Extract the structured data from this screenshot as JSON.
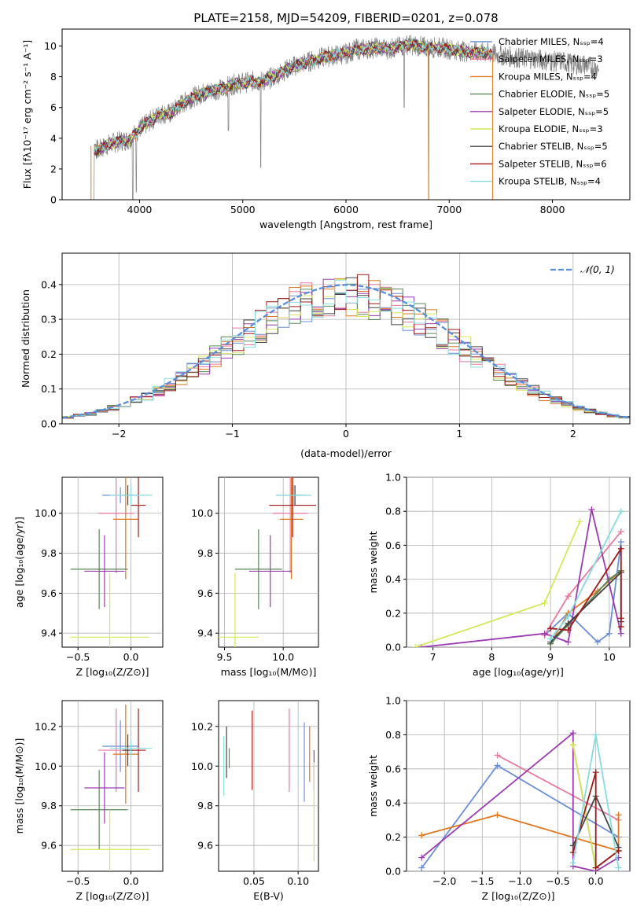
{
  "figure_title": "PLATE=2158, MJD=54209, FIBERID=0201, z=0.078",
  "colors": {
    "Chabrier MILES": "#6b8fd6",
    "Salpeter MILES": "#e8799f",
    "Kroupa MILES": "#e0771f",
    "Chabrier ELODIE": "#5a8a5a",
    "Salpeter ELODIE": "#9c3bb0",
    "Kroupa ELODIE": "#d4e85a",
    "Chabrier STELIB": "#444444",
    "Salpeter STELIB": "#a01818",
    "Kroupa STELIB": "#86dde0",
    "data": "#808080",
    "normal": "#5b8dd9"
  },
  "chart_data": [
    {
      "id": "spectrum",
      "type": "line",
      "title": "PLATE=2158, MJD=54209, FIBERID=0201, z=0.078",
      "xlabel": "wavelength [Angstrom, rest frame]",
      "ylabel": "Flux [fλ10⁻¹⁷ erg cm⁻² s⁻¹ A⁻¹]",
      "xlim": [
        3250,
        8750
      ],
      "ylim": [
        0,
        11.1
      ],
      "xticks": [
        "4000",
        "5000",
        "6000",
        "7000",
        "8000"
      ],
      "yticks": [
        "0",
        "2",
        "4",
        "6",
        "8",
        "10"
      ],
      "legend": [
        {
          "label": "Chabrier MILES, Nₛₛₚ=4"
        },
        {
          "label": "Salpeter MILES, Nₛₛₚ=3"
        },
        {
          "label": "Kroupa MILES, Nₛₛₚ=4"
        },
        {
          "label": "Chabrier ELODIE, Nₛₛₚ=5"
        },
        {
          "label": "Salpeter ELODIE, Nₛₛₚ=5"
        },
        {
          "label": "Kroupa ELODIE, Nₛₛₚ=3"
        },
        {
          "label": "Chabrier STELIB, Nₛₛₚ=5"
        },
        {
          "label": "Salpeter STELIB, Nₛₛₚ=6"
        },
        {
          "label": "Kroupa STELIB, Nₛₛₚ=4"
        }
      ],
      "continuum": [
        [
          3550,
          3.4
        ],
        [
          3600,
          3.2
        ],
        [
          3700,
          3.6
        ],
        [
          3800,
          3.8
        ],
        [
          3900,
          3.9
        ],
        [
          4000,
          4.6
        ],
        [
          4100,
          5.1
        ],
        [
          4200,
          5.6
        ],
        [
          4300,
          5.6
        ],
        [
          4400,
          6.2
        ],
        [
          4500,
          6.6
        ],
        [
          4600,
          6.9
        ],
        [
          4700,
          7.1
        ],
        [
          4800,
          7.2
        ],
        [
          4900,
          7.5
        ],
        [
          5000,
          7.6
        ],
        [
          5100,
          7.7
        ],
        [
          5200,
          7.7
        ],
        [
          5300,
          8.0
        ],
        [
          5400,
          8.4
        ],
        [
          5500,
          8.7
        ],
        [
          5600,
          8.9
        ],
        [
          5700,
          9.1
        ],
        [
          5800,
          9.3
        ],
        [
          5900,
          9.4
        ],
        [
          6000,
          9.5
        ],
        [
          6100,
          9.8
        ],
        [
          6200,
          9.8
        ],
        [
          6300,
          9.9
        ],
        [
          6400,
          9.8
        ],
        [
          6500,
          9.9
        ],
        [
          6600,
          10.1
        ],
        [
          6700,
          10.0
        ],
        [
          6800,
          9.9
        ],
        [
          6900,
          9.9
        ],
        [
          7000,
          9.8
        ],
        [
          7100,
          9.7
        ],
        [
          7200,
          9.6
        ],
        [
          7300,
          9.6
        ],
        [
          7400,
          9.5
        ],
        [
          7500,
          9.4
        ],
        [
          7600,
          9.3
        ],
        [
          7700,
          9.2
        ],
        [
          7800,
          9.2
        ],
        [
          7900,
          9.1
        ],
        [
          8000,
          9.0
        ],
        [
          8100,
          9.0
        ],
        [
          8200,
          8.8
        ],
        [
          8300,
          8.8
        ],
        [
          8400,
          8.6
        ]
      ],
      "model_end": 7420,
      "data_end": 8450,
      "absorption": [
        [
          3934,
          0.0
        ],
        [
          3969,
          0.5
        ],
        [
          4861,
          4.5
        ],
        [
          5175,
          2.1
        ],
        [
          6563,
          6.0
        ],
        [
          6800,
          0.0
        ]
      ]
    },
    {
      "id": "residuals",
      "type": "histogram",
      "xlabel": "(data-model)/error",
      "ylabel": "Normed distribution",
      "xlim": [
        -2.5,
        2.5
      ],
      "ylim": [
        0,
        0.49
      ],
      "xticks": [
        "−2",
        "−1",
        "0",
        "1",
        "2"
      ],
      "yticks": [
        "0.0",
        "0.1",
        "0.2",
        "0.3",
        "0.4"
      ],
      "bin_width": 0.1,
      "legend": [
        {
          "label": "𝒩(0, 1)"
        }
      ],
      "series": [
        {
          "lib": "Chabrier MILES",
          "offset": 0
        },
        {
          "lib": "Salpeter MILES",
          "offset": 1
        },
        {
          "lib": "Kroupa MILES",
          "offset": 2
        },
        {
          "lib": "Chabrier ELODIE",
          "offset": 3
        },
        {
          "lib": "Salpeter ELODIE",
          "offset": 4
        },
        {
          "lib": "Kroupa ELODIE",
          "offset": 5
        },
        {
          "lib": "Chabrier STELIB",
          "offset": 6
        },
        {
          "lib": "Salpeter STELIB",
          "offset": 7
        },
        {
          "lib": "Kroupa STELIB",
          "offset": 8
        }
      ]
    },
    {
      "id": "z-age",
      "type": "scatter",
      "xlabel": "Z [log₁₀(Z/Z⊙)]",
      "ylabel": "age  [log₁₀(age/yr)]",
      "xlim": [
        -0.65,
        0.3
      ],
      "ylim": [
        9.33,
        10.18
      ],
      "xticks": [
        {
          "v": -0.5,
          "t": "−0.5"
        },
        {
          "v": 0.0,
          "t": "0.0"
        }
      ],
      "yticks": [
        {
          "v": 9.4,
          "t": "9.4"
        },
        {
          "v": 9.6,
          "t": "9.6"
        },
        {
          "v": 9.8,
          "t": "9.8"
        },
        {
          "v": 10.0,
          "t": "10.0"
        }
      ],
      "points": [
        {
          "lib": "Chabrier MILES",
          "x": -0.1,
          "xe": 0.17,
          "y": 10.09,
          "ye": 0.04
        },
        {
          "lib": "Salpeter MILES",
          "x": -0.14,
          "xe": 0.17,
          "y": 10.0,
          "ye": 0.3
        },
        {
          "lib": "Kroupa MILES",
          "x": -0.05,
          "xe": 0.12,
          "y": 9.97,
          "ye": 0.3
        },
        {
          "lib": "Chabrier ELODIE",
          "x": -0.3,
          "xe": 0.27,
          "y": 9.72,
          "ye": 0.2
        },
        {
          "lib": "Salpeter ELODIE",
          "x": -0.25,
          "xe": 0.19,
          "y": 9.71,
          "ye": 0.18
        },
        {
          "lib": "Kroupa ELODIE",
          "x": -0.2,
          "xe": 0.37,
          "y": 9.38,
          "ye": 0.32
        },
        {
          "lib": "Chabrier STELIB",
          "x": -0.03,
          "xe": 0.05,
          "y": 10.09,
          "ye": 0.05
        },
        {
          "lib": "Salpeter STELIB",
          "x": 0.07,
          "xe": 0.07,
          "y": 10.04,
          "ye": 0.16
        },
        {
          "lib": "Kroupa STELIB",
          "x": 0.0,
          "xe": 0.2,
          "y": 10.09,
          "ye": 0.05
        }
      ]
    },
    {
      "id": "mass-age",
      "type": "scatter",
      "xlabel": "mass [log₁₀(M/M⊙)]",
      "ylabel": "",
      "xlim": [
        9.45,
        10.3
      ],
      "ylim": [
        9.33,
        10.18
      ],
      "xticks": [
        {
          "v": 9.5,
          "t": "9.5"
        },
        {
          "v": 10.0,
          "t": "10.0"
        }
      ],
      "yticks": [
        {
          "v": 9.4,
          "t": "9.4"
        },
        {
          "v": 9.6,
          "t": "9.6"
        },
        {
          "v": 9.8,
          "t": "9.8"
        },
        {
          "v": 10.0,
          "t": "10.0"
        }
      ],
      "points": [
        {
          "lib": "Chabrier MILES",
          "x": 10.07,
          "xe": 0.13,
          "y": 10.09,
          "ye": 0.04
        },
        {
          "lib": "Salpeter MILES",
          "x": 10.06,
          "xe": 0.15,
          "y": 10.0,
          "ye": 0.3
        },
        {
          "lib": "Kroupa MILES",
          "x": 10.07,
          "xe": 0.1,
          "y": 9.97,
          "ye": 0.3
        },
        {
          "lib": "Chabrier ELODIE",
          "x": 9.79,
          "xe": 0.2,
          "y": 9.72,
          "ye": 0.2
        },
        {
          "lib": "Salpeter ELODIE",
          "x": 9.89,
          "xe": 0.18,
          "y": 9.71,
          "ye": 0.18
        },
        {
          "lib": "Kroupa ELODIE",
          "x": 9.59,
          "xe": 0.2,
          "y": 9.38,
          "ye": 0.32
        },
        {
          "lib": "Chabrier STELIB",
          "x": 10.1,
          "xe": 0.05,
          "y": 10.09,
          "ye": 0.05
        },
        {
          "lib": "Salpeter STELIB",
          "x": 10.08,
          "xe": 0.2,
          "y": 10.04,
          "ye": 0.16
        },
        {
          "lib": "Kroupa STELIB",
          "x": 10.09,
          "xe": 0.15,
          "y": 10.09,
          "ye": 0.05
        }
      ]
    },
    {
      "id": "age-weight",
      "type": "line",
      "xlabel": "age  [log₁₀(age/yr)]",
      "ylabel": "mass weight",
      "xlim": [
        6.55,
        10.35
      ],
      "ylim": [
        0,
        1.0
      ],
      "xticks": [
        {
          "v": 7,
          "t": "7"
        },
        {
          "v": 8,
          "t": "8"
        },
        {
          "v": 9,
          "t": "9"
        },
        {
          "v": 10,
          "t": "10"
        }
      ],
      "yticks": [
        {
          "v": 0,
          "t": "0.0"
        },
        {
          "v": 0.2,
          "t": "0.2"
        },
        {
          "v": 0.4,
          "t": "0.4"
        },
        {
          "v": 0.6,
          "t": "0.6"
        },
        {
          "v": 0.8,
          "t": "0.8"
        },
        {
          "v": 1.0,
          "t": "1.0"
        }
      ],
      "series": [
        {
          "lib": "Chabrier MILES",
          "x": [
            8.9,
            9.3,
            9.8,
            10.0,
            10.2
          ],
          "y": [
            0.07,
            0.2,
            0.03,
            0.08,
            0.62
          ]
        },
        {
          "lib": "Salpeter MILES",
          "x": [
            8.9,
            9.3,
            10.2
          ],
          "y": [
            0.07,
            0.3,
            0.68
          ]
        },
        {
          "lib": "Kroupa MILES",
          "x": [
            9.0,
            9.3,
            9.8,
            10.2
          ],
          "y": [
            0.02,
            0.2,
            0.33,
            0.45
          ]
        },
        {
          "lib": "Chabrier ELODIE",
          "x": [
            9.0,
            9.3,
            10.0,
            10.2
          ],
          "y": [
            0.02,
            0.13,
            0.4,
            0.45
          ]
        },
        {
          "lib": "Salpeter ELODIE",
          "x": [
            6.8,
            8.9,
            9.3,
            9.7,
            10.2
          ],
          "y": [
            0.0,
            0.08,
            0.03,
            0.81,
            0.08
          ]
        },
        {
          "lib": "Kroupa ELODIE",
          "x": [
            6.7,
            8.9,
            9.5
          ],
          "y": [
            0.0,
            0.26,
            0.74
          ]
        },
        {
          "lib": "Chabrier STELIB",
          "x": [
            9.0,
            9.3,
            10.2,
            10.2
          ],
          "y": [
            0.03,
            0.14,
            0.44,
            0.15
          ]
        },
        {
          "lib": "Salpeter STELIB",
          "x": [
            9.0,
            9.3,
            10.2,
            10.2,
            10.2
          ],
          "y": [
            0.11,
            0.1,
            0.58,
            0.12,
            0.17
          ]
        },
        {
          "lib": "Kroupa STELIB",
          "x": [
            9.0,
            9.3,
            10.2
          ],
          "y": [
            0.05,
            0.18,
            0.8
          ]
        }
      ]
    },
    {
      "id": "z-mass",
      "type": "scatter",
      "xlabel": "Z [log₁₀(Z/Z⊙)]",
      "ylabel": "mass [log₁₀(M/M⊙)]",
      "xlim": [
        -0.65,
        0.3
      ],
      "ylim": [
        9.47,
        10.33
      ],
      "xticks": [
        {
          "v": -0.5,
          "t": "−0.5"
        },
        {
          "v": 0.0,
          "t": "0.0"
        }
      ],
      "yticks": [
        {
          "v": 9.6,
          "t": "9.6"
        },
        {
          "v": 9.8,
          "t": "9.8"
        },
        {
          "v": 10.0,
          "t": "10.0"
        },
        {
          "v": 10.2,
          "t": "10.2"
        }
      ],
      "points": [
        {
          "lib": "Chabrier MILES",
          "x": -0.1,
          "xe": 0.17,
          "y": 10.1,
          "ye": 0.13
        },
        {
          "lib": "Salpeter MILES",
          "x": -0.14,
          "xe": 0.17,
          "y": 10.08,
          "ye": 0.21
        },
        {
          "lib": "Kroupa MILES",
          "x": -0.05,
          "xe": 0.12,
          "y": 10.06,
          "ye": 0.25
        },
        {
          "lib": "Chabrier ELODIE",
          "x": -0.3,
          "xe": 0.27,
          "y": 9.78,
          "ye": 0.2
        },
        {
          "lib": "Salpeter ELODIE",
          "x": -0.25,
          "xe": 0.19,
          "y": 9.89,
          "ye": 0.18
        },
        {
          "lib": "Kroupa ELODIE",
          "x": -0.2,
          "xe": 0.37,
          "y": 9.58,
          "ye": 0.2
        },
        {
          "lib": "Chabrier STELIB",
          "x": -0.03,
          "xe": 0.05,
          "y": 10.08,
          "ye": 0.08
        },
        {
          "lib": "Salpeter STELIB",
          "x": 0.07,
          "xe": 0.07,
          "y": 10.08,
          "ye": 0.21
        },
        {
          "lib": "Kroupa STELIB",
          "x": 0.0,
          "xe": 0.2,
          "y": 10.09,
          "ye": 0.04
        }
      ]
    },
    {
      "id": "ebv-mass",
      "type": "scatter",
      "xlabel": "E(B-V)",
      "ylabel": "",
      "xlim": [
        0.01,
        0.123
      ],
      "ylim": [
        9.47,
        10.33
      ],
      "xticks": [
        {
          "v": 0.05,
          "t": "0.05"
        },
        {
          "v": 0.1,
          "t": "0.10"
        }
      ],
      "yticks": [
        {
          "v": 9.6,
          "t": "9.6"
        },
        {
          "v": 9.8,
          "t": "9.8"
        },
        {
          "v": 10.0,
          "t": "10.0"
        },
        {
          "v": 10.2,
          "t": "10.2"
        }
      ],
      "points": [
        {
          "lib": "Chabrier MILES",
          "x": 0.107,
          "xe": 0,
          "y": 10.02,
          "ye": 0.2
        },
        {
          "lib": "Salpeter MILES",
          "x": 0.09,
          "xe": 0,
          "y": 10.08,
          "ye": 0.21
        },
        {
          "lib": "Kroupa MILES",
          "x": 0.113,
          "xe": 0,
          "y": 10.06,
          "ye": 0.14
        },
        {
          "lib": "Chabrier ELODIE",
          "x": 0.022,
          "xe": 0,
          "y": 10.04,
          "ye": 0.05
        },
        {
          "lib": "Salpeter ELODIE",
          "x": 0.118,
          "xe": 0,
          "y": 9.98,
          "ye": 0.1
        },
        {
          "lib": "Kroupa ELODIE",
          "x": 0.118,
          "xe": 0,
          "y": 9.77,
          "ye": 0.25
        },
        {
          "lib": "Chabrier STELIB",
          "x": 0.019,
          "xe": 0,
          "y": 10.07,
          "ye": 0.13
        },
        {
          "lib": "Salpeter STELIB",
          "x": 0.048,
          "xe": 0,
          "y": 10.08,
          "ye": 0.2
        },
        {
          "lib": "Kroupa STELIB",
          "x": 0.016,
          "xe": 0,
          "y": 10.0,
          "ye": 0.15
        }
      ]
    },
    {
      "id": "z-weight",
      "type": "line",
      "xlabel": "Z [log₁₀(Z/Z⊙)]",
      "ylabel": "mass weight",
      "xlim": [
        -2.5,
        0.45
      ],
      "ylim": [
        0,
        1.0
      ],
      "xticks": [
        {
          "v": -2.0,
          "t": "−2.0"
        },
        {
          "v": -1.5,
          "t": "−1.5"
        },
        {
          "v": -1.0,
          "t": "−1.0"
        },
        {
          "v": -0.5,
          "t": "−0.5"
        },
        {
          "v": 0.0,
          "t": "0.0"
        }
      ],
      "yticks": [
        {
          "v": 0,
          "t": "0.0"
        },
        {
          "v": 0.2,
          "t": "0.2"
        },
        {
          "v": 0.4,
          "t": "0.4"
        },
        {
          "v": 0.6,
          "t": "0.6"
        },
        {
          "v": 0.8,
          "t": "0.8"
        },
        {
          "v": 1.0,
          "t": "1.0"
        }
      ],
      "series": [
        {
          "lib": "Chabrier MILES",
          "x": [
            -2.3,
            -1.3,
            0.3
          ],
          "y": [
            0.02,
            0.62,
            0.2
          ]
        },
        {
          "lib": "Salpeter MILES",
          "x": [
            -1.3,
            0.3
          ],
          "y": [
            0.68,
            0.3
          ]
        },
        {
          "lib": "Kroupa MILES",
          "x": [
            -2.3,
            -1.3,
            0.3,
            0.3
          ],
          "y": [
            0.21,
            0.33,
            0.12,
            0.33
          ]
        },
        {
          "lib": "Chabrier ELODIE",
          "x": [
            -0.3,
            0.0,
            0.3
          ],
          "y": [
            0.74,
            0.02,
            0.12
          ]
        },
        {
          "lib": "Salpeter ELODIE",
          "x": [
            -2.3,
            -0.3,
            -0.3,
            0.0,
            0.3
          ],
          "y": [
            0.08,
            0.81,
            0.03,
            0.0,
            0.08
          ]
        },
        {
          "lib": "Kroupa ELODIE",
          "x": [
            -0.3,
            0.0
          ],
          "y": [
            0.74,
            0.02
          ]
        },
        {
          "lib": "Chabrier STELIB",
          "x": [
            -0.3,
            0.0,
            0.3
          ],
          "y": [
            0.15,
            0.44,
            0.14
          ]
        },
        {
          "lib": "Salpeter STELIB",
          "x": [
            -0.3,
            0.0,
            0.0,
            0.3
          ],
          "y": [
            0.11,
            0.58,
            0.02,
            0.12
          ]
        },
        {
          "lib": "Kroupa STELIB",
          "x": [
            -0.3,
            0.0,
            0.3
          ],
          "y": [
            0.05,
            0.8,
            0.02
          ]
        }
      ]
    }
  ]
}
